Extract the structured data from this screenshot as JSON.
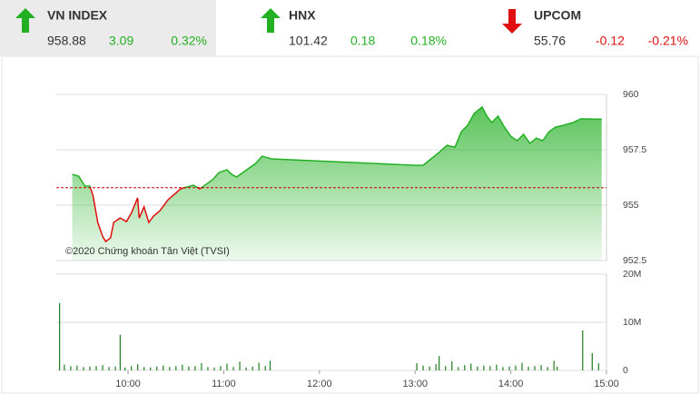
{
  "indices": [
    {
      "name": "VN INDEX",
      "value": "958.88",
      "change": "3.09",
      "change_pct": "0.32%",
      "direction": "up",
      "highlight": true
    },
    {
      "name": "HNX",
      "value": "101.42",
      "change": "0.18",
      "change_pct": "0.18%",
      "direction": "up",
      "highlight": false
    },
    {
      "name": "UPCOM",
      "value": "55.76",
      "change": "-0.12",
      "change_pct": "-0.21%",
      "direction": "down",
      "highlight": false
    }
  ],
  "chart_data": [
    {
      "type": "line",
      "annotation": "©2020 Chứng khoán Tân Việt (TVSI)",
      "x": [
        "09:25",
        "09:29",
        "09:33",
        "09:36",
        "09:38",
        "09:41",
        "09:44",
        "09:46",
        "09:49",
        "09:51",
        "09:55",
        "09:59",
        "10:02",
        "10:06",
        "10:07",
        "10:10",
        "10:13",
        "10:16",
        "10:20",
        "10:25",
        "10:29",
        "10:33",
        "10:37",
        "10:41",
        "10:45",
        "10:49",
        "10:53",
        "10:57",
        "11:02",
        "11:05",
        "11:08",
        "11:12",
        "11:16",
        "11:20",
        "11:24",
        "11:30",
        "13:00",
        "13:05",
        "13:10",
        "13:15",
        "13:20",
        "13:25",
        "13:29",
        "13:33",
        "13:37",
        "13:42",
        "13:45",
        "13:48",
        "13:52",
        "13:56",
        "14:00",
        "14:04",
        "14:08",
        "14:12",
        "14:16",
        "14:20",
        "14:24",
        "14:28",
        "14:33",
        "14:39",
        "14:44",
        "14:57"
      ],
      "series": [
        {
          "values": [
            956.39,
            956.31,
            955.86,
            955.86,
            955.45,
            954.22,
            953.6,
            953.36,
            953.52,
            954.22,
            954.42,
            954.26,
            954.63,
            955.33,
            954.42,
            954.92,
            954.22,
            954.51,
            954.75,
            955.24,
            955.49,
            955.74,
            955.82,
            955.9,
            955.74,
            955.94,
            956.15,
            956.47,
            956.6,
            956.39,
            956.27,
            956.47,
            956.68,
            956.88,
            957.21,
            957.09,
            956.8,
            956.8,
            957.09,
            957.38,
            957.7,
            957.62,
            958.32,
            958.61,
            959.14,
            959.43,
            959.02,
            958.73,
            959.02,
            958.52,
            958.11,
            957.91,
            958.2,
            957.79,
            958.03,
            957.91,
            958.32,
            958.52,
            958.61,
            958.73,
            958.9,
            958.88
          ],
          "color": "#22b022",
          "color_below": "#e01010"
        }
      ],
      "reference": 955.79,
      "reference_color": "#c00000",
      "xlim": [
        "09:15",
        "15:00"
      ],
      "ylim": [
        952.5,
        960
      ],
      "yticks": [
        952.5,
        955,
        957.5,
        960
      ],
      "grid": true
    },
    {
      "type": "bar",
      "x": [
        "09:17",
        "09:20",
        "09:24",
        "09:28",
        "09:32",
        "09:36",
        "09:40",
        "09:44",
        "09:48",
        "09:52",
        "09:55",
        "09:58",
        "10:02",
        "10:06",
        "10:10",
        "10:14",
        "10:18",
        "10:22",
        "10:26",
        "10:30",
        "10:34",
        "10:38",
        "10:42",
        "10:46",
        "10:50",
        "10:54",
        "10:58",
        "11:02",
        "11:06",
        "11:10",
        "11:14",
        "11:18",
        "11:22",
        "11:26",
        "11:29",
        "13:01",
        "13:05",
        "13:09",
        "13:13",
        "13:15",
        "13:19",
        "13:23",
        "13:27",
        "13:31",
        "13:35",
        "13:39",
        "13:43",
        "13:47",
        "13:51",
        "13:55",
        "13:59",
        "14:03",
        "14:07",
        "14:11",
        "14:15",
        "14:19",
        "14:23",
        "14:27",
        "14:29",
        "14:45",
        "14:51",
        "14:55"
      ],
      "values": [
        14000000,
        1200000,
        900000,
        1000000,
        700000,
        800000,
        900000,
        1100000,
        700000,
        800000,
        7400000,
        600000,
        900000,
        1300000,
        700000,
        600000,
        800000,
        1000000,
        700000,
        900000,
        1200000,
        800000,
        900000,
        1500000,
        700000,
        600000,
        900000,
        1400000,
        700000,
        1800000,
        600000,
        800000,
        1600000,
        900000,
        2000000,
        1500000,
        1000000,
        800000,
        1300000,
        3000000,
        900000,
        1900000,
        700000,
        1100000,
        1400000,
        800000,
        1000000,
        900000,
        1200000,
        700000,
        800000,
        1000000,
        1600000,
        800000,
        900000,
        1100000,
        700000,
        2000000,
        800000,
        8300000,
        3600000,
        1500000
      ],
      "color": "#1e7d1e",
      "xlim": [
        "09:15",
        "15:00"
      ],
      "xticks": [
        "10:00",
        "11:00",
        "12:00",
        "13:00",
        "14:00",
        "15:00"
      ],
      "ylim": [
        0,
        20000000
      ],
      "yticks": [
        0,
        {
          "value": 10000000,
          "label": "10M"
        },
        {
          "value": 20000000,
          "label": "20M"
        }
      ],
      "grid": true
    }
  ]
}
